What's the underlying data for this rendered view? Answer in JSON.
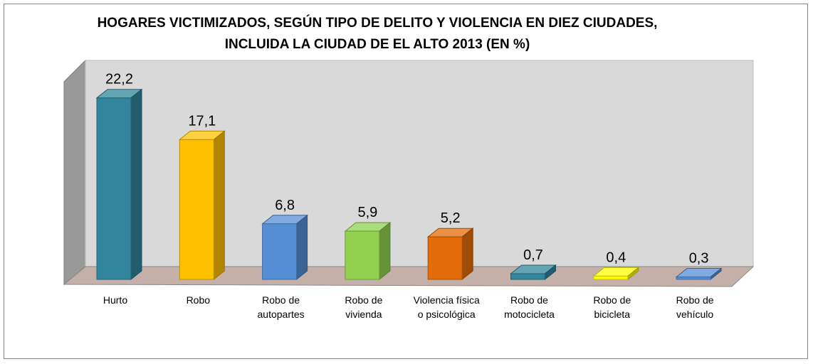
{
  "chart_data": {
    "type": "bar3d",
    "title": "HOGARES VICTIMIZADOS, SEGÚN TIPO DE DELITO Y VIOLENCIA EN DIEZ CIUDADES, INCLUIDA LA CIUDAD DE EL ALTO 2013 (EN %)",
    "categories": [
      "Hurto",
      "Robo",
      "Robo de autopartes",
      "Robo de vivienda",
      "Violencia física o psicológica",
      "Robo de motocicleta",
      "Robo de bicicleta",
      "Robo de vehículo"
    ],
    "values": [
      22.2,
      17.1,
      6.8,
      5.9,
      5.2,
      0.7,
      0.4,
      0.3
    ],
    "value_labels": [
      "22,2",
      "17,1",
      "6,8",
      "5,9",
      "5,2",
      "0,7",
      "0,4",
      "0,3"
    ],
    "colors": [
      "#31859c",
      "#ffc000",
      "#558ed5",
      "#92d050",
      "#e36c09",
      "#31859c",
      "#ffff00",
      "#558ed5"
    ],
    "ylim": [
      0,
      25
    ]
  }
}
